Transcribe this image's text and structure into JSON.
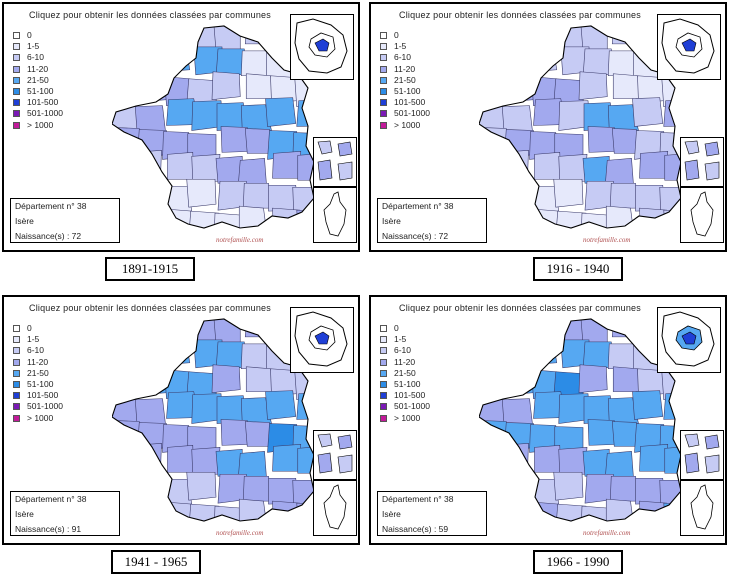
{
  "panels": [
    {
      "title": "Cliquez pour obtenir les données classées par communes",
      "period": "1891-1915",
      "info": {
        "dept": "Département n° 38",
        "name": "Isère",
        "births": "Naissance(s) : 72"
      },
      "credit": "notrefamille.com",
      "weights": [
        3,
        1,
        2,
        1,
        0,
        2,
        3,
        1,
        2,
        3,
        1,
        0,
        2,
        3,
        1,
        2,
        3,
        0,
        1,
        2,
        3,
        1,
        2,
        3,
        0,
        1,
        2,
        3,
        1,
        2,
        3,
        0,
        1,
        2,
        3,
        1,
        2,
        3,
        0,
        1,
        2,
        3,
        1,
        2
      ]
    },
    {
      "title": "Cliquez pour obtenir les données classées par communes",
      "period": "1916 - 1940",
      "info": {
        "dept": "Département n° 38",
        "name": "Isère",
        "births": "Naissance(s) : 72"
      },
      "credit": "notrefamille.com",
      "weights": [
        2,
        1,
        1,
        2,
        0,
        3,
        1,
        2,
        1,
        2,
        1,
        0,
        2,
        1,
        3,
        2,
        1,
        0,
        1,
        2,
        1,
        1,
        2,
        3,
        0,
        1,
        2,
        1,
        1,
        2,
        3,
        0,
        1,
        2,
        1,
        1,
        2,
        1,
        0,
        1,
        2,
        1,
        1,
        2
      ]
    },
    {
      "title": "Cliquez pour obtenir les données classées par communes",
      "period": "1941 - 1965",
      "info": {
        "dept": "Département n° 38",
        "name": "Isère",
        "births": "Naissance(s) : 91"
      },
      "credit": "notrefamille.com",
      "weights": [
        3,
        2,
        2,
        3,
        1,
        3,
        4,
        2,
        2,
        3,
        2,
        1,
        3,
        3,
        2,
        2,
        3,
        1,
        2,
        3,
        3,
        2,
        2,
        3,
        1,
        2,
        3,
        3,
        2,
        2,
        3,
        1,
        2,
        3,
        3,
        2,
        2,
        3,
        1,
        2,
        3,
        3,
        2,
        2
      ]
    },
    {
      "title": "Cliquez pour obtenir les données classées par communes",
      "period": "1966 - 1990",
      "info": {
        "dept": "Département n° 38",
        "name": "Isère",
        "births": "Naissance(s) : 59"
      },
      "credit": "notrefamille.com",
      "weights": [
        3,
        2,
        2,
        4,
        1,
        3,
        3,
        2,
        3,
        3,
        2,
        1,
        3,
        3,
        2,
        3,
        3,
        2,
        2,
        3,
        3,
        2,
        3,
        3,
        1,
        2,
        3,
        3,
        2,
        3,
        3,
        1,
        2,
        3,
        3,
        2,
        3,
        3,
        1,
        2,
        3,
        3,
        2,
        3
      ]
    }
  ],
  "legend": [
    {
      "label": "0",
      "color": "#ffffff"
    },
    {
      "label": "1-5",
      "color": "#e6e9fb"
    },
    {
      "label": "6-10",
      "color": "#c6cbf4"
    },
    {
      "label": "11-20",
      "color": "#a2a9ee"
    },
    {
      "label": "21-50",
      "color": "#56a8f2"
    },
    {
      "label": "51-100",
      "color": "#2c8ce6"
    },
    {
      "label": "101-500",
      "color": "#1f3fd6"
    },
    {
      "label": "501-1000",
      "color": "#7a19b5"
    },
    {
      "label": "> 1000",
      "color": "#c21a9a"
    }
  ]
}
